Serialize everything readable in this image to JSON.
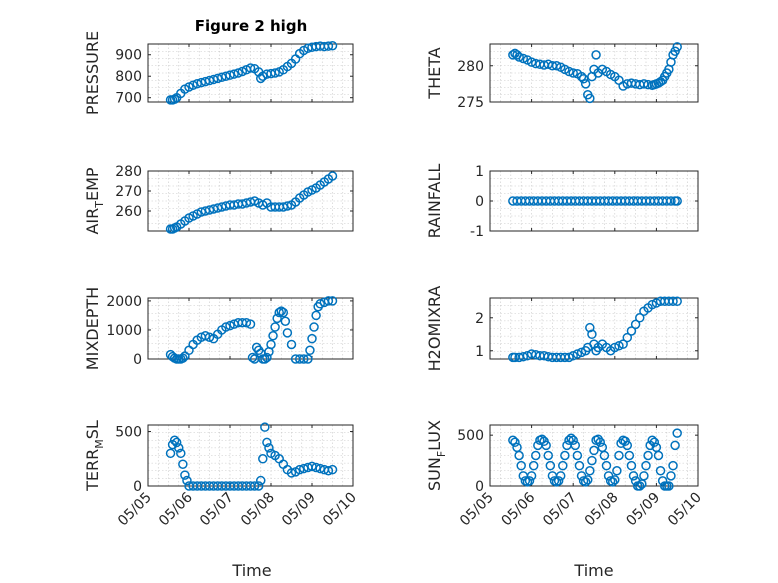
{
  "figure_title": "Figure 2 high",
  "xlabel": "Time",
  "xticks": [
    "05/05",
    "05/06",
    "05/07",
    "05/08",
    "05/09",
    "05/10"
  ],
  "marker_color": "#0072BD",
  "chart_data": [
    {
      "id": "pressure",
      "type": "scatter",
      "ylabel": "PRESSURE",
      "ylim": [
        680,
        950
      ],
      "yticks": [
        700,
        800,
        900
      ],
      "x": [
        5.55,
        5.6,
        5.65,
        5.7,
        5.8,
        5.9,
        6.0,
        6.1,
        6.2,
        6.3,
        6.4,
        6.5,
        6.6,
        6.7,
        6.8,
        6.9,
        7.0,
        7.1,
        7.2,
        7.3,
        7.4,
        7.5,
        7.6,
        7.7,
        7.75,
        7.8,
        7.9,
        8.0,
        8.1,
        8.2,
        8.3,
        8.4,
        8.5,
        8.6,
        8.7,
        8.8,
        8.9,
        9.0,
        9.1,
        9.2,
        9.3,
        9.4,
        9.5
      ],
      "y": [
        690,
        690,
        693,
        700,
        720,
        740,
        750,
        758,
        765,
        770,
        775,
        780,
        785,
        790,
        795,
        800,
        805,
        810,
        815,
        822,
        830,
        838,
        835,
        820,
        790,
        800,
        810,
        812,
        815,
        820,
        830,
        845,
        860,
        880,
        905,
        920,
        930,
        935,
        938,
        940,
        938,
        940,
        942
      ]
    },
    {
      "id": "theta",
      "type": "scatter",
      "ylabel": "THETA",
      "ylim": [
        275,
        283
      ],
      "yticks": [
        275,
        280
      ],
      "x": [
        5.55,
        5.6,
        5.65,
        5.7,
        5.8,
        5.9,
        6.0,
        6.1,
        6.2,
        6.3,
        6.4,
        6.5,
        6.6,
        6.7,
        6.8,
        6.9,
        7.0,
        7.1,
        7.2,
        7.25,
        7.3,
        7.35,
        7.4,
        7.45,
        7.5,
        7.55,
        7.6,
        7.7,
        7.8,
        7.9,
        8.0,
        8.1,
        8.2,
        8.3,
        8.4,
        8.5,
        8.6,
        8.7,
        8.8,
        8.9,
        8.95,
        9.0,
        9.05,
        9.1,
        9.15,
        9.2,
        9.25,
        9.3,
        9.35,
        9.4,
        9.45,
        9.5
      ],
      "y": [
        281.5,
        281.7,
        281.5,
        281.2,
        281.0,
        280.8,
        280.5,
        280.3,
        280.2,
        280.1,
        280.2,
        280.0,
        280.0,
        279.8,
        279.5,
        279.2,
        279.0,
        278.9,
        278.5,
        278.2,
        277.5,
        276.0,
        275.5,
        278.5,
        279.5,
        281.5,
        279.0,
        279.5,
        279.2,
        278.8,
        278.5,
        278.0,
        277.2,
        277.5,
        277.6,
        277.5,
        277.4,
        277.5,
        277.4,
        277.3,
        277.4,
        277.5,
        277.6,
        277.8,
        278.0,
        278.5,
        279.0,
        279.5,
        280.5,
        281.5,
        282.0,
        282.6
      ]
    },
    {
      "id": "air_temp",
      "type": "scatter",
      "ylabel": "AIR_TEMP",
      "ylim": [
        250,
        280
      ],
      "yticks": [
        260,
        270,
        280
      ],
      "x": [
        5.55,
        5.6,
        5.65,
        5.7,
        5.8,
        5.9,
        6.0,
        6.1,
        6.2,
        6.3,
        6.4,
        6.5,
        6.6,
        6.7,
        6.8,
        6.9,
        7.0,
        7.1,
        7.2,
        7.3,
        7.4,
        7.5,
        7.6,
        7.7,
        7.8,
        7.9,
        8.0,
        8.1,
        8.2,
        8.3,
        8.4,
        8.5,
        8.6,
        8.7,
        8.8,
        8.9,
        9.0,
        9.1,
        9.2,
        9.3,
        9.4,
        9.5
      ],
      "y": [
        251,
        251,
        251.5,
        252,
        253.5,
        255,
        256.5,
        257.5,
        258.5,
        259.5,
        260,
        260.5,
        261,
        261.5,
        262,
        262.5,
        263,
        263,
        263.5,
        263.5,
        264,
        264.5,
        265,
        264,
        263,
        264,
        262,
        262,
        262,
        262,
        262.5,
        263,
        264.5,
        266.5,
        268,
        269.5,
        270.5,
        271.5,
        273,
        274.5,
        276,
        277.5
      ]
    },
    {
      "id": "rainfall",
      "type": "scatter",
      "ylabel": "RAINFALL",
      "ylim": [
        -1,
        1
      ],
      "yticks": [
        -1,
        0,
        1
      ],
      "x": [
        5.55,
        5.65,
        5.75,
        5.85,
        5.95,
        6.05,
        6.15,
        6.25,
        6.35,
        6.45,
        6.55,
        6.65,
        6.75,
        6.85,
        6.95,
        7.05,
        7.15,
        7.25,
        7.35,
        7.45,
        7.55,
        7.65,
        7.75,
        7.85,
        7.95,
        8.05,
        8.15,
        8.25,
        8.35,
        8.45,
        8.55,
        8.65,
        8.75,
        8.85,
        8.95,
        9.05,
        9.15,
        9.25,
        9.35,
        9.45,
        9.5
      ],
      "y": [
        0,
        0,
        0,
        0,
        0,
        0,
        0,
        0,
        0,
        0,
        0,
        0,
        0,
        0,
        0,
        0,
        0,
        0,
        0,
        0,
        0,
        0,
        0,
        0,
        0,
        0,
        0,
        0,
        0,
        0,
        0,
        0,
        0,
        0,
        0,
        0,
        0,
        0,
        0,
        0,
        0
      ]
    },
    {
      "id": "mixdepth",
      "type": "scatter",
      "ylabel": "MIXDEPTH",
      "ylim": [
        0,
        2100
      ],
      "yticks": [
        0,
        1000,
        2000
      ],
      "x": [
        5.55,
        5.6,
        5.65,
        5.7,
        5.75,
        5.8,
        5.85,
        5.9,
        6.0,
        6.1,
        6.2,
        6.3,
        6.4,
        6.5,
        6.6,
        6.7,
        6.8,
        6.9,
        7.0,
        7.1,
        7.2,
        7.3,
        7.4,
        7.5,
        7.55,
        7.6,
        7.65,
        7.7,
        7.75,
        7.8,
        7.85,
        7.9,
        7.95,
        8.0,
        8.05,
        8.1,
        8.15,
        8.2,
        8.25,
        8.3,
        8.35,
        8.4,
        8.5,
        8.6,
        8.7,
        8.8,
        8.9,
        8.95,
        9.0,
        9.05,
        9.1,
        9.15,
        9.2,
        9.3,
        9.4,
        9.5
      ],
      "y": [
        150,
        80,
        30,
        0,
        0,
        0,
        30,
        100,
        300,
        500,
        650,
        750,
        800,
        750,
        700,
        850,
        1000,
        1100,
        1150,
        1200,
        1250,
        1250,
        1250,
        1200,
        50,
        0,
        400,
        300,
        200,
        0,
        0,
        50,
        250,
        500,
        800,
        1100,
        1400,
        1600,
        1650,
        1600,
        1300,
        900,
        500,
        0,
        0,
        0,
        0,
        300,
        700,
        1100,
        1500,
        1800,
        1900,
        1950,
        2000,
        2000
      ]
    },
    {
      "id": "h2omixra",
      "type": "scatter",
      "ylabel": "H2OMIXRA",
      "ylim": [
        0.75,
        2.6
      ],
      "yticks": [
        1,
        2
      ],
      "x": [
        5.55,
        5.6,
        5.7,
        5.8,
        5.9,
        6.0,
        6.1,
        6.2,
        6.3,
        6.4,
        6.5,
        6.6,
        6.7,
        6.8,
        6.9,
        7.0,
        7.1,
        7.2,
        7.3,
        7.35,
        7.4,
        7.45,
        7.5,
        7.55,
        7.6,
        7.7,
        7.8,
        7.9,
        8.0,
        8.1,
        8.2,
        8.3,
        8.4,
        8.5,
        8.6,
        8.7,
        8.8,
        8.9,
        9.0,
        9.1,
        9.2,
        9.3,
        9.4,
        9.5
      ],
      "y": [
        0.8,
        0.8,
        0.8,
        0.82,
        0.85,
        0.9,
        0.88,
        0.85,
        0.85,
        0.82,
        0.8,
        0.8,
        0.8,
        0.8,
        0.8,
        0.85,
        0.9,
        0.95,
        1.0,
        1.1,
        1.7,
        1.5,
        1.2,
        1.0,
        1.1,
        1.2,
        1.1,
        1.0,
        1.1,
        1.15,
        1.2,
        1.4,
        1.6,
        1.8,
        2.0,
        2.2,
        2.3,
        2.4,
        2.45,
        2.5,
        2.5,
        2.5,
        2.5,
        2.5
      ]
    },
    {
      "id": "terr_msl",
      "type": "scatter",
      "ylabel": "TERR_MSL",
      "ylim": [
        0,
        560
      ],
      "yticks": [
        0,
        500
      ],
      "x": [
        5.55,
        5.6,
        5.65,
        5.7,
        5.75,
        5.8,
        5.85,
        5.9,
        5.95,
        6.0,
        6.1,
        6.2,
        6.3,
        6.4,
        6.5,
        6.6,
        6.7,
        6.8,
        6.9,
        7.0,
        7.1,
        7.2,
        7.3,
        7.4,
        7.5,
        7.6,
        7.7,
        7.75,
        7.8,
        7.85,
        7.9,
        7.95,
        8.0,
        8.1,
        8.2,
        8.3,
        8.4,
        8.5,
        8.6,
        8.7,
        8.8,
        8.9,
        9.0,
        9.1,
        9.2,
        9.3,
        9.4,
        9.5
      ],
      "y": [
        300,
        380,
        420,
        400,
        350,
        300,
        200,
        100,
        50,
        0,
        0,
        0,
        0,
        0,
        0,
        0,
        0,
        0,
        0,
        0,
        0,
        0,
        0,
        0,
        0,
        0,
        0,
        50,
        250,
        540,
        400,
        350,
        300,
        280,
        250,
        200,
        150,
        120,
        130,
        150,
        160,
        170,
        180,
        170,
        160,
        150,
        140,
        150
      ]
    },
    {
      "id": "sun_flux",
      "type": "scatter",
      "ylabel": "SUN_FLUX",
      "ylim": [
        0,
        600
      ],
      "yticks": [
        0,
        500
      ],
      "x": [
        5.55,
        5.6,
        5.65,
        5.7,
        5.75,
        5.8,
        5.85,
        5.9,
        5.95,
        6.0,
        6.05,
        6.1,
        6.15,
        6.2,
        6.25,
        6.3,
        6.35,
        6.4,
        6.45,
        6.5,
        6.55,
        6.6,
        6.65,
        6.7,
        6.75,
        6.8,
        6.85,
        6.9,
        6.95,
        7.0,
        7.05,
        7.1,
        7.15,
        7.2,
        7.25,
        7.3,
        7.35,
        7.4,
        7.45,
        7.5,
        7.55,
        7.6,
        7.65,
        7.7,
        7.75,
        7.8,
        7.85,
        7.9,
        7.95,
        8.0,
        8.05,
        8.1,
        8.15,
        8.2,
        8.25,
        8.3,
        8.35,
        8.4,
        8.45,
        8.5,
        8.55,
        8.6,
        8.65,
        8.7,
        8.75,
        8.8,
        8.85,
        8.9,
        8.95,
        9.0,
        9.05,
        9.1,
        9.15,
        9.2,
        9.25,
        9.3,
        9.35,
        9.4,
        9.45,
        9.5
      ],
      "y": [
        450,
        430,
        380,
        300,
        200,
        100,
        50,
        40,
        50,
        100,
        200,
        300,
        400,
        450,
        460,
        440,
        400,
        300,
        200,
        100,
        50,
        40,
        50,
        100,
        200,
        300,
        400,
        450,
        470,
        450,
        400,
        300,
        200,
        100,
        50,
        40,
        60,
        150,
        250,
        350,
        450,
        460,
        430,
        380,
        300,
        200,
        100,
        50,
        40,
        60,
        150,
        300,
        420,
        450,
        440,
        400,
        300,
        200,
        100,
        50,
        0,
        0,
        20,
        100,
        200,
        300,
        400,
        450,
        430,
        380,
        300,
        150,
        50,
        0,
        0,
        0,
        100,
        200,
        400,
        520
      ]
    }
  ]
}
